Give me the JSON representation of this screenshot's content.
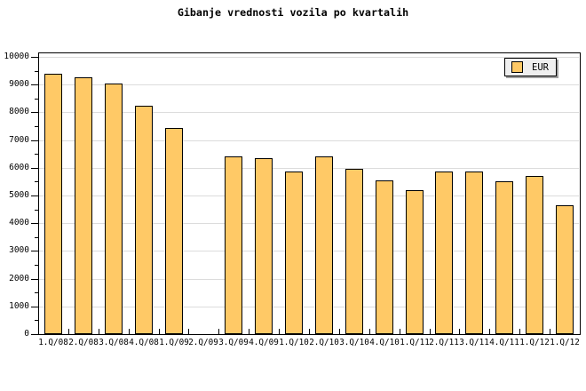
{
  "chart_data": {
    "type": "bar",
    "title": "Gibanje vrednosti vozila po kvartalih",
    "categories": [
      "1.Q/08",
      "2.Q/08",
      "3.Q/08",
      "4.Q/08",
      "1.Q/09",
      "2.Q/09",
      "3.Q/09",
      "4.Q/09",
      "1.Q/10",
      "2.Q/10",
      "3.Q/10",
      "4.Q/10",
      "1.Q/11",
      "2.Q/11",
      "3.Q/11",
      "4.Q/11",
      "1.Q/12",
      "1.Q/12"
    ],
    "series": [
      {
        "name": "EUR",
        "values": [
          9400,
          9250,
          9050,
          8250,
          7450,
          null,
          6400,
          6350,
          5850,
          6400,
          5950,
          5550,
          5200,
          5850,
          5850,
          5500,
          5700,
          4650
        ]
      }
    ],
    "xlabel": "",
    "ylabel": "",
    "ylim": [
      0,
      10000
    ],
    "y_major_tick": 1000,
    "y_minor_tick": 500,
    "ytick_labels": [
      "0",
      "1000",
      "2000",
      "3000",
      "4000",
      "5000",
      "6000",
      "7000",
      "8000",
      "9000",
      "10000"
    ],
    "grid": "horizontal-major-only",
    "legend_position": "top-right",
    "legend_labels": [
      "EUR"
    ],
    "notes": "no bar drawn at 2.Q/09",
    "colors": {
      "bar_fill": "#FFC966",
      "bar_border": "#000000",
      "gridline": "#DCDCDC",
      "axis": "#000000",
      "background": "#FFFFFF",
      "legend_bg": "#EFEFEF",
      "legend_shadow": "#A0A0A0",
      "text": "#000000"
    }
  }
}
